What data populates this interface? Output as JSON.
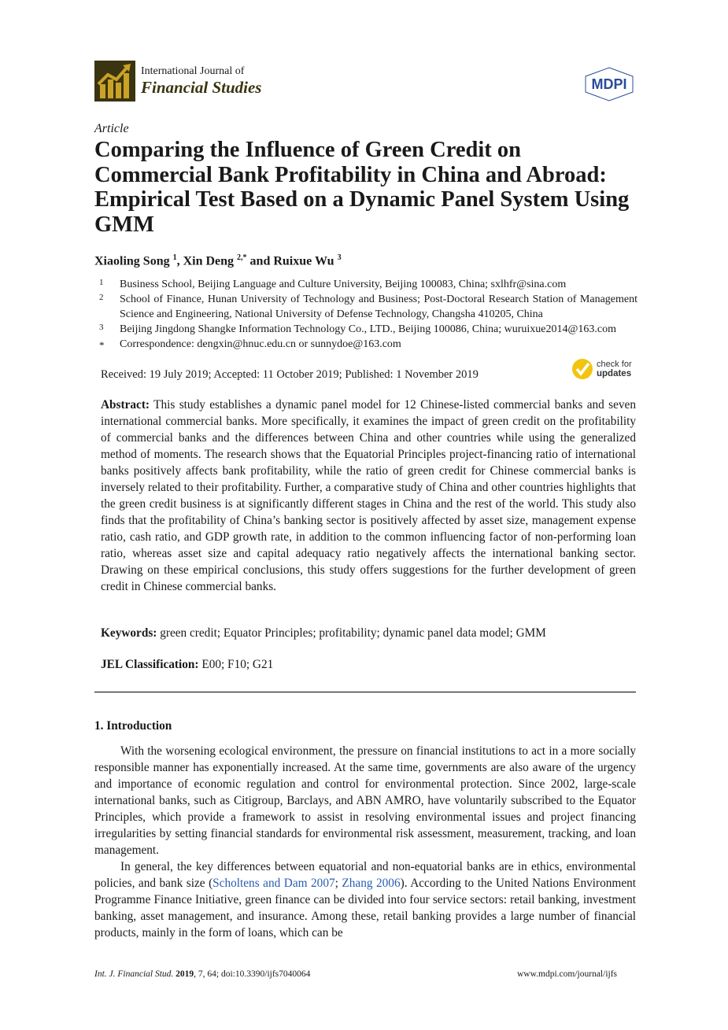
{
  "header": {
    "journal_line1": "International Journal of",
    "journal_line2": "Financial Studies",
    "publisher_logo": "MDPI",
    "brand_colors": {
      "journal": "#3a3410",
      "logo_gold": "#c9a227",
      "mdpi": "#2b4c9a",
      "update_badge": "#f2c40f"
    }
  },
  "article_type": "Article",
  "title": "Comparing the Influence of Green Credit on Commercial Bank Profitability in China and Abroad: Empirical Test Based on a Dynamic Panel System Using GMM",
  "authors": [
    {
      "name": "Xiaoling Song",
      "sup": "1"
    },
    {
      "name": "Xin Deng",
      "sup": "2,*"
    },
    {
      "name": "Ruixue Wu",
      "sup": "3"
    }
  ],
  "author_sep": ", ",
  "author_and": " and ",
  "affiliations": [
    {
      "n": "1",
      "text": "Business School, Beijing Language and Culture University, Beijing 100083, China; sxlhfr@sina.com"
    },
    {
      "n": "2",
      "text": "School of Finance, Hunan University of Technology and Business; Post-Doctoral Research Station of Management Science and Engineering, National University of Defense Technology, Changsha 410205, China"
    },
    {
      "n": "3",
      "text": "Beijing Jingdong Shangke Information Technology Co., LTD., Beijing 100086, China; wuruixue2014@163.com"
    },
    {
      "n": "*",
      "text": "Correspondence: dengxin@hnuc.edu.cn or sunnydoe@163.com"
    }
  ],
  "dates": "Received: 19 July 2019; Accepted: 11 October 2019; Published: 1 November 2019",
  "check_updates": {
    "line1": "check for",
    "line2": "updates"
  },
  "abstract": {
    "label": "Abstract:",
    "text": "This study establishes a dynamic panel model for 12 Chinese-listed commercial banks and seven international commercial banks. More specifically, it examines the impact of green credit on the profitability of commercial banks and the differences between China and other countries while using the generalized method of moments. The research shows that the Equatorial Principles project-financing ratio of international banks positively affects bank profitability, while the ratio of green credit for Chinese commercial banks is inversely related to their profitability. Further, a comparative study of China and other countries highlights that the green credit business is at significantly different stages in China and the rest of the world. This study also finds that the profitability of China’s banking sector is positively affected by asset size, management expense ratio, cash ratio, and GDP growth rate, in addition to the common influencing factor of non-performing loan ratio, whereas asset size and capital adequacy ratio negatively affects the international banking sector. Drawing on these empirical conclusions, this study offers suggestions for the further development of green credit in Chinese commercial banks."
  },
  "keywords": {
    "label": "Keywords:",
    "text": "green credit; Equator Principles; profitability; dynamic panel data model; GMM"
  },
  "jel": {
    "label": "JEL Classification:",
    "text": "E00; F10; G21"
  },
  "section": "1. Introduction",
  "paragraphs": {
    "p1": "With the worsening ecological environment, the pressure on financial institutions to act in a more socially responsible manner has exponentially increased. At the same time, governments are also aware of the urgency and importance of economic regulation and control for environmental protection. Since 2002, large-scale international banks, such as Citigroup, Barclays, and ABN AMRO, have voluntarily subscribed to the Equator Principles, which provide a framework to assist in resolving environmental issues and project financing irregularities by setting financial standards for environmental risk assessment, measurement, tracking, and loan management.",
    "p2a": "In general, the key differences between equatorial and non-equatorial banks are in ethics, environmental policies, and bank size (",
    "p2_ref1": "Scholtens and Dam 2007",
    "p2_sep": "; ",
    "p2_ref2": "Zhang 2006",
    "p2b": "). According to the United Nations Environment Programme Finance Initiative, green finance can be divided into four service sectors: retail banking, investment banking, asset management, and insurance. Among these, retail banking provides a large number of financial products, mainly in the form of loans, which can be"
  },
  "footer": {
    "journal_abbr": "Int. J. Financial Stud.",
    "year": "2019",
    "rest": ", 7, 64; doi:10.3390/ijfs7040064",
    "url": "www.mdpi.com/journal/ijfs"
  }
}
